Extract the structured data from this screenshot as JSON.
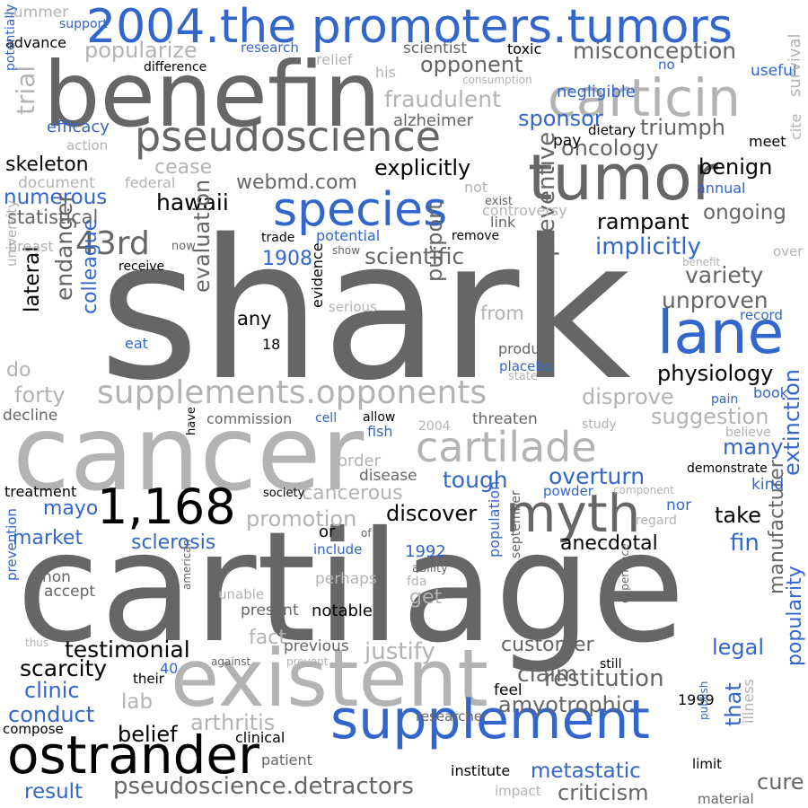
{
  "words": [
    {
      "text": "shark",
      "color": "dark"
    },
    {
      "text": "cartilage",
      "color": "dark"
    },
    {
      "text": "cancer",
      "color": "light"
    },
    {
      "text": "benefin",
      "color": "dark"
    },
    {
      "text": "existent",
      "color": "light"
    },
    {
      "text": "tumor",
      "color": "dark"
    },
    {
      "text": "2004.the promoters.tumors",
      "color": "blue"
    },
    {
      "text": "supplement",
      "color": "blue"
    },
    {
      "text": "lane",
      "color": "blue"
    },
    {
      "text": "ostrander",
      "color": "black"
    },
    {
      "text": "myth",
      "color": "dark"
    },
    {
      "text": "carticin",
      "color": "light"
    },
    {
      "text": "pseudoscience",
      "color": "dark"
    },
    {
      "text": "species",
      "color": "blue"
    },
    {
      "text": "1,168",
      "color": "black"
    },
    {
      "text": "cartilade",
      "color": "light"
    },
    {
      "text": "supplements.opponents",
      "color": "light"
    },
    {
      "text": "43rd",
      "color": "dark"
    },
    {
      "text": "misconception",
      "color": "dark"
    },
    {
      "text": "opponent",
      "color": "dark"
    },
    {
      "text": "fraudulent",
      "color": "light"
    },
    {
      "text": "popularize",
      "color": "light"
    },
    {
      "text": "sponsor",
      "color": "blue"
    },
    {
      "text": "triumph",
      "color": "dark"
    },
    {
      "text": "oncology",
      "color": "dark"
    },
    {
      "text": "explicitly",
      "color": "black"
    },
    {
      "text": "benign",
      "color": "black"
    },
    {
      "text": "skeleton",
      "color": "black"
    },
    {
      "text": "webmd.com",
      "color": "dark"
    },
    {
      "text": "hawaii",
      "color": "black"
    },
    {
      "text": "numerous",
      "color": "blue"
    },
    {
      "text": "statistical",
      "color": "dark"
    },
    {
      "text": "rampant",
      "color": "black"
    },
    {
      "text": "ongoing",
      "color": "dark"
    },
    {
      "text": "implicitly",
      "color": "blue"
    },
    {
      "text": "scientific",
      "color": "dark"
    },
    {
      "text": "variety",
      "color": "dark"
    },
    {
      "text": "unproven",
      "color": "dark"
    },
    {
      "text": "1908",
      "color": "blue"
    },
    {
      "text": "physiology",
      "color": "black"
    },
    {
      "text": "evaluation",
      "color": "dark"
    },
    {
      "text": "purport",
      "color": "dark"
    },
    {
      "text": "preventive",
      "color": "dark"
    },
    {
      "text": "endanger",
      "color": "dark"
    },
    {
      "text": "lateral",
      "color": "black"
    },
    {
      "text": "colleague",
      "color": "blue"
    },
    {
      "text": "disprove",
      "color": "light"
    },
    {
      "text": "forty",
      "color": "light"
    },
    {
      "text": "suggestion",
      "color": "light"
    },
    {
      "text": "cancerous",
      "color": "light"
    },
    {
      "text": "promotion",
      "color": "light"
    },
    {
      "text": "discover",
      "color": "black"
    },
    {
      "text": "tough",
      "color": "blue"
    },
    {
      "text": "overturn",
      "color": "blue"
    },
    {
      "text": "many",
      "color": "blue"
    },
    {
      "text": "mayo",
      "color": "blue"
    },
    {
      "text": "market",
      "color": "blue"
    },
    {
      "text": "sclerosis",
      "color": "blue"
    },
    {
      "text": "anecdotal",
      "color": "black"
    },
    {
      "text": "take",
      "color": "black"
    },
    {
      "text": "fin",
      "color": "blue"
    },
    {
      "text": "extinction",
      "color": "blue"
    },
    {
      "text": "testimonial",
      "color": "black"
    },
    {
      "text": "scarcity",
      "color": "black"
    },
    {
      "text": "justify",
      "color": "light"
    },
    {
      "text": "customer",
      "color": "dark"
    },
    {
      "text": "restitution",
      "color": "dark"
    },
    {
      "text": "amyotrophic",
      "color": "dark"
    },
    {
      "text": "claim",
      "color": "dark"
    },
    {
      "text": "clinic",
      "color": "blue"
    },
    {
      "text": "conduct",
      "color": "blue"
    },
    {
      "text": "belief",
      "color": "black"
    },
    {
      "text": "arthritis",
      "color": "light"
    },
    {
      "text": "lab",
      "color": "light"
    },
    {
      "text": "legal",
      "color": "blue"
    },
    {
      "text": "metastatic",
      "color": "blue"
    },
    {
      "text": "pseudoscience.detractors",
      "color": "dark"
    },
    {
      "text": "criticism",
      "color": "dark"
    },
    {
      "text": "result",
      "color": "blue"
    },
    {
      "text": "cure",
      "color": "dark"
    },
    {
      "text": "that",
      "color": "blue"
    },
    {
      "text": "manufacturer",
      "color": "dark"
    },
    {
      "text": "popularity",
      "color": "blue"
    },
    {
      "text": "efficacy",
      "color": "blue"
    },
    {
      "text": "trial",
      "color": "light"
    },
    {
      "text": "alzheimer",
      "color": "dark"
    },
    {
      "text": "cease",
      "color": "light"
    },
    {
      "text": "advance",
      "color": "black"
    },
    {
      "text": "summer",
      "color": "light"
    },
    {
      "text": "support",
      "color": "blue"
    },
    {
      "text": "research",
      "color": "blue"
    },
    {
      "text": "difference",
      "color": "black"
    },
    {
      "text": "relief",
      "color": "light"
    },
    {
      "text": "his",
      "color": "light"
    },
    {
      "text": "consumption",
      "color": "light"
    },
    {
      "text": "negligible",
      "color": "blue"
    },
    {
      "text": "scientist",
      "color": "dark"
    },
    {
      "text": "toxic",
      "color": "black"
    },
    {
      "text": "no",
      "color": "blue"
    },
    {
      "text": "useful",
      "color": "blue"
    },
    {
      "text": "survival",
      "color": "light"
    },
    {
      "text": "potentially",
      "color": "blue"
    },
    {
      "text": "action",
      "color": "light"
    },
    {
      "text": "document",
      "color": "light"
    },
    {
      "text": "federal",
      "color": "light"
    },
    {
      "text": "pay",
      "color": "black"
    },
    {
      "text": "dietary",
      "color": "black"
    },
    {
      "text": "meet",
      "color": "black"
    },
    {
      "text": "cite",
      "color": "light"
    },
    {
      "text": "annual",
      "color": "blue"
    },
    {
      "text": "not",
      "color": "light"
    },
    {
      "text": "exist",
      "color": "dark"
    },
    {
      "text": "controversy",
      "color": "light"
    },
    {
      "text": "link",
      "color": "dark"
    },
    {
      "text": "breast",
      "color": "light"
    },
    {
      "text": "now",
      "color": "dark"
    },
    {
      "text": "trade",
      "color": "black"
    },
    {
      "text": "potential",
      "color": "blue"
    },
    {
      "text": "remove",
      "color": "black"
    },
    {
      "text": "show",
      "color": "dark"
    },
    {
      "text": "receive",
      "color": "black"
    },
    {
      "text": "over",
      "color": "light"
    },
    {
      "text": "benefit",
      "color": "light"
    },
    {
      "text": "university",
      "color": "light"
    },
    {
      "text": "serious",
      "color": "light"
    },
    {
      "text": "from",
      "color": "light"
    },
    {
      "text": "record",
      "color": "blue"
    },
    {
      "text": "any",
      "color": "black"
    },
    {
      "text": "18",
      "color": "black"
    },
    {
      "text": "evidence",
      "color": "black"
    },
    {
      "text": "product",
      "color": "dark"
    },
    {
      "text": "placebo",
      "color": "blue"
    },
    {
      "text": "state",
      "color": "light"
    },
    {
      "text": "eat",
      "color": "blue"
    },
    {
      "text": "do",
      "color": "light"
    },
    {
      "text": "book",
      "color": "blue"
    },
    {
      "text": "pain",
      "color": "blue"
    },
    {
      "text": "believe",
      "color": "light"
    },
    {
      "text": "decline",
      "color": "dark"
    },
    {
      "text": "commission",
      "color": "dark"
    },
    {
      "text": "cell",
      "color": "blue"
    },
    {
      "text": "allow",
      "color": "black"
    },
    {
      "text": "2004",
      "color": "light"
    },
    {
      "text": "threaten",
      "color": "dark"
    },
    {
      "text": "study",
      "color": "light"
    },
    {
      "text": "fish",
      "color": "blue"
    },
    {
      "text": "have",
      "color": "black"
    },
    {
      "text": "order",
      "color": "light"
    },
    {
      "text": "disease",
      "color": "dark"
    },
    {
      "text": "demonstrate",
      "color": "black"
    },
    {
      "text": "kind",
      "color": "blue"
    },
    {
      "text": "treatment",
      "color": "black"
    },
    {
      "text": "society",
      "color": "black"
    },
    {
      "text": "powder",
      "color": "blue"
    },
    {
      "text": "component",
      "color": "light"
    },
    {
      "text": "nor",
      "color": "blue"
    },
    {
      "text": "regard",
      "color": "light"
    },
    {
      "text": "or",
      "color": "black"
    },
    {
      "text": "of",
      "color": "dark"
    },
    {
      "text": "include",
      "color": "blue"
    },
    {
      "text": "1992",
      "color": "blue"
    },
    {
      "text": "non",
      "color": "dark"
    },
    {
      "text": "accept",
      "color": "dark"
    },
    {
      "text": "perhaps",
      "color": "light"
    },
    {
      "text": "fda",
      "color": "light"
    },
    {
      "text": "get",
      "color": "light"
    },
    {
      "text": "ability",
      "color": "dark"
    },
    {
      "text": "population",
      "color": "blue"
    },
    {
      "text": "september",
      "color": "dark"
    },
    {
      "text": "prevention",
      "color": "blue"
    },
    {
      "text": "unable",
      "color": "light"
    },
    {
      "text": "american",
      "color": "dark"
    },
    {
      "text": "present",
      "color": "dark"
    },
    {
      "text": "notable",
      "color": "black"
    },
    {
      "text": "experience",
      "color": "dark"
    },
    {
      "text": "thus",
      "color": "light"
    },
    {
      "text": "fact",
      "color": "light"
    },
    {
      "text": "previous",
      "color": "dark"
    },
    {
      "text": "against",
      "color": "dark"
    },
    {
      "text": "prevent",
      "color": "light"
    },
    {
      "text": "still",
      "color": "black"
    },
    {
      "text": "40",
      "color": "blue"
    },
    {
      "text": "their",
      "color": "black"
    },
    {
      "text": "feel",
      "color": "black"
    },
    {
      "text": "1999",
      "color": "black"
    },
    {
      "text": "compose",
      "color": "black"
    },
    {
      "text": "researcher",
      "color": "dark"
    },
    {
      "text": "clinical",
      "color": "black"
    },
    {
      "text": "publish",
      "color": "blue"
    },
    {
      "text": "illness",
      "color": "light"
    },
    {
      "text": "patient",
      "color": "dark"
    },
    {
      "text": "institute",
      "color": "black"
    },
    {
      "text": "limit",
      "color": "black"
    },
    {
      "text": "impact",
      "color": "light"
    },
    {
      "text": "material",
      "color": "dark"
    }
  ]
}
